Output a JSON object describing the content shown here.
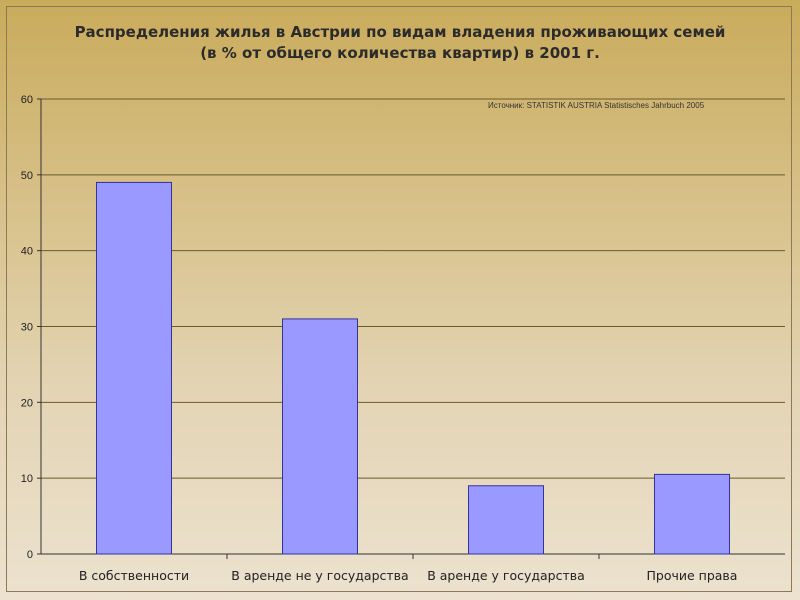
{
  "chart_data": {
    "type": "bar",
    "title": "Распределения жилья в Австрии по видам владения проживающих семей",
    "subtitle": "(в % от общего количества квартир) в 2001 г.",
    "source_note": "Источник: STATISTIK AUSTRIA Statistisches Jahrbuch 2005",
    "categories": [
      "В собственности",
      "В аренде не у государства",
      "В аренде у государства",
      "Прочие права"
    ],
    "values": [
      49,
      31,
      9,
      10.5
    ],
    "ylim": [
      0,
      60
    ],
    "yticks": [
      "0",
      "10",
      "20",
      "30",
      "40",
      "50",
      "60"
    ],
    "grid": true,
    "legend": "none",
    "colors": {
      "bar": "#9999ff",
      "bar_border": "#333399",
      "gridline": "#6b5a2c",
      "axis": "#333333"
    }
  }
}
